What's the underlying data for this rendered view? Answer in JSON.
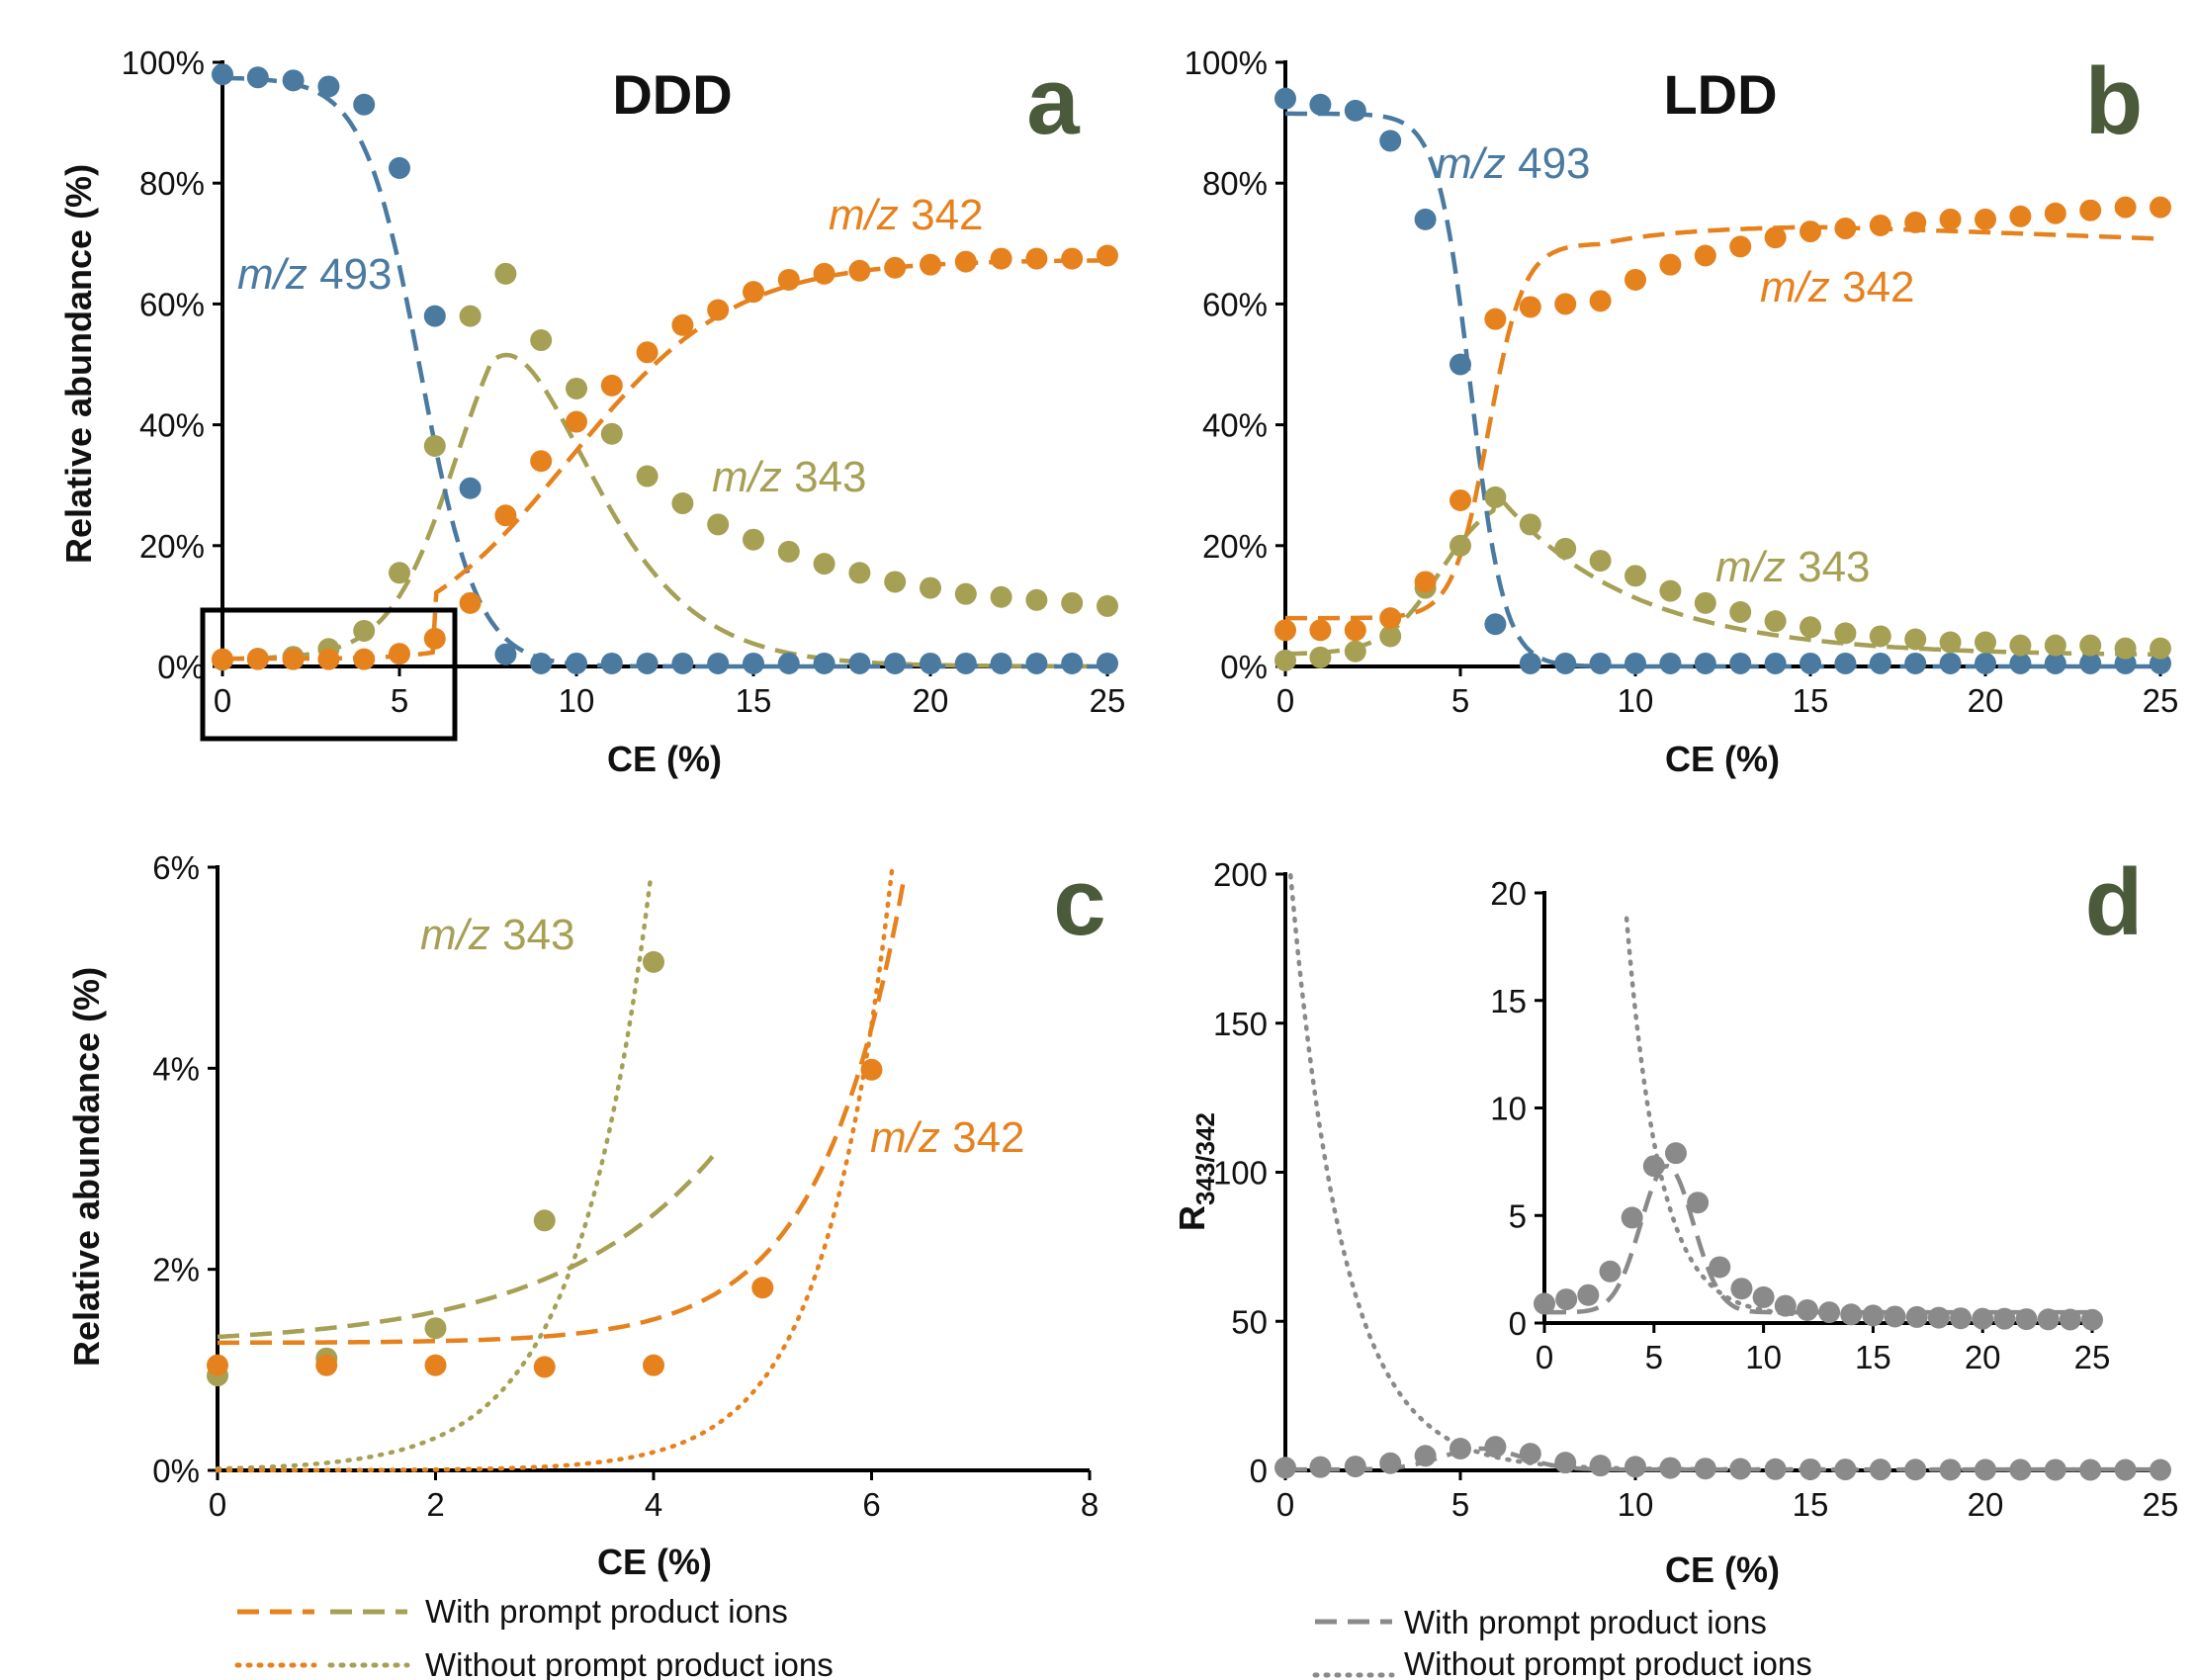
{
  "colors": {
    "blue": "#4a7aa0",
    "orange": "#e6821e",
    "olive": "#a6a055",
    "gray": "#8a8a8a",
    "panel_letter": "#4a5a3a",
    "axis": "#000000"
  },
  "legend_text": {
    "with_prompt": "With prompt product ions",
    "without_prompt": "Without prompt product ions"
  },
  "chart_data": [
    {
      "panel": "a",
      "type": "scatter",
      "title": "DDD",
      "xlabel": "CE (%)",
      "ylabel": "Relative abundance (%)",
      "xlim": [
        0,
        25
      ],
      "ylim": [
        0,
        100
      ],
      "xticks": [
        "0",
        "5",
        "10",
        "15",
        "20",
        "25"
      ],
      "yticks": [
        "0%",
        "20%",
        "40%",
        "60%",
        "80%",
        "100%"
      ],
      "annotations": [
        "m/z 493",
        "m/z 342",
        "m/z 343"
      ],
      "series": [
        {
          "name": "m/z 493",
          "x": [
            0,
            1,
            2,
            3,
            4,
            5,
            6,
            7,
            8,
            9,
            10,
            11,
            12,
            13,
            14,
            15,
            16,
            17,
            18,
            19,
            20,
            21,
            22,
            23,
            24,
            25
          ],
          "y": [
            98,
            97.5,
            97,
            96,
            93,
            82.5,
            58,
            29.5,
            2,
            0.5,
            0.5,
            0.5,
            0.5,
            0.5,
            0.5,
            0.5,
            0.5,
            0.5,
            0.5,
            0.5,
            0.5,
            0.5,
            0.5,
            0.5,
            0.5,
            0.5
          ]
        },
        {
          "name": "m/z 342",
          "x": [
            0,
            1,
            2,
            3,
            4,
            5,
            6,
            7,
            8,
            9,
            10,
            11,
            12,
            13,
            14,
            15,
            16,
            17,
            18,
            19,
            20,
            21,
            22,
            23,
            24,
            25
          ],
          "y": [
            1.2,
            1.2,
            1.2,
            1.2,
            1.2,
            2.1,
            4.6,
            10.5,
            25,
            34,
            40.5,
            46.5,
            52,
            56.5,
            59,
            62,
            64,
            65,
            65.5,
            66,
            66.5,
            67,
            67.5,
            67.5,
            67.5,
            68
          ]
        },
        {
          "name": "m/z 343",
          "x": [
            0,
            1,
            2,
            3,
            4,
            5,
            6,
            7,
            8,
            9,
            10,
            11,
            12,
            13,
            14,
            15,
            16,
            17,
            18,
            19,
            20,
            21,
            22,
            23,
            24,
            25
          ],
          "y": [
            1.1,
            1.3,
            1.6,
            2.9,
            5.9,
            15.5,
            36.5,
            58,
            65,
            54,
            46,
            38.5,
            31.5,
            27,
            23.5,
            21,
            19,
            17,
            15.5,
            14,
            13,
            12,
            11.5,
            11,
            10.5,
            10
          ]
        }
      ]
    },
    {
      "panel": "b",
      "type": "scatter",
      "title": "LDD",
      "xlabel": "CE (%)",
      "xlim": [
        0,
        25
      ],
      "ylim": [
        0,
        100
      ],
      "xticks": [
        "0",
        "5",
        "10",
        "15",
        "20",
        "25"
      ],
      "yticks": [
        "0%",
        "20%",
        "40%",
        "60%",
        "80%",
        "100%"
      ],
      "annotations": [
        "m/z 493",
        "m/z 342",
        "m/z 343"
      ],
      "series": [
        {
          "name": "m/z 493",
          "x": [
            0,
            1,
            2,
            3,
            4,
            5,
            6,
            7,
            8,
            9,
            10,
            11,
            12,
            13,
            14,
            15,
            16,
            17,
            18,
            19,
            20,
            21,
            22,
            23,
            24,
            25
          ],
          "y": [
            94,
            93,
            92,
            87,
            74,
            50,
            7,
            0.5,
            0.5,
            0.5,
            0.5,
            0.5,
            0.5,
            0.5,
            0.5,
            0.5,
            0.5,
            0.5,
            0.5,
            0.5,
            0.5,
            0.5,
            0.5,
            0.5,
            0.5,
            0.5
          ]
        },
        {
          "name": "m/z 342",
          "x": [
            0,
            1,
            2,
            3,
            4,
            5,
            6,
            7,
            8,
            9,
            10,
            11,
            12,
            13,
            14,
            15,
            16,
            17,
            18,
            19,
            20,
            21,
            22,
            23,
            24,
            25
          ],
          "y": [
            6,
            6,
            6,
            8,
            14,
            27.5,
            57.5,
            59.5,
            60,
            60.5,
            64,
            66.5,
            68,
            69.5,
            71,
            72,
            72.5,
            73,
            73.5,
            74,
            74,
            74.5,
            75,
            75.5,
            76,
            76
          ]
        },
        {
          "name": "m/z 343",
          "x": [
            0,
            1,
            2,
            3,
            4,
            5,
            6,
            7,
            8,
            9,
            10,
            11,
            12,
            13,
            14,
            15,
            16,
            17,
            18,
            19,
            20,
            21,
            22,
            23,
            24,
            25
          ],
          "y": [
            1,
            1.5,
            2.5,
            5,
            13,
            20,
            28,
            23.5,
            19.5,
            17.5,
            15,
            12.5,
            10.5,
            9,
            7.5,
            6.5,
            5.5,
            5,
            4.5,
            4,
            4,
            3.5,
            3.5,
            3.5,
            3,
            3
          ]
        }
      ]
    },
    {
      "panel": "c",
      "type": "scatter",
      "xlabel": "CE (%)",
      "ylabel": "Relative abundance (%)",
      "xlim": [
        0,
        8
      ],
      "ylim": [
        0,
        7
      ],
      "xticks": [
        "0",
        "2",
        "4",
        "6",
        "8"
      ],
      "yticks": [
        "0%",
        "2%",
        "4%",
        "6%"
      ],
      "annotations": [
        "m/z 343",
        "m/z 342"
      ],
      "series": [
        {
          "name": "m/z 343",
          "x": [
            0,
            1,
            2,
            3,
            4
          ],
          "y": [
            1.1,
            1.3,
            1.65,
            2.9,
            5.9
          ]
        },
        {
          "name": "m/z 342",
          "x": [
            0,
            1,
            2,
            3,
            4,
            5,
            6
          ],
          "y": [
            1.22,
            1.22,
            1.22,
            1.2,
            1.22,
            2.12,
            4.65
          ]
        }
      ]
    },
    {
      "panel": "d",
      "type": "scatter",
      "xlabel": "CE (%)",
      "ylabel": "R343/342",
      "xlim": [
        0,
        25
      ],
      "ylim": [
        0,
        200
      ],
      "xticks": [
        "0",
        "5",
        "10",
        "15",
        "20",
        "25"
      ],
      "yticks": [
        "0",
        "50",
        "100",
        "150",
        "200"
      ],
      "series": [
        {
          "x": [
            0,
            1,
            2,
            3,
            4,
            5,
            6,
            7,
            8,
            9,
            10,
            11,
            12,
            13,
            14,
            15,
            16,
            17,
            18,
            19,
            20,
            21,
            22,
            23,
            24,
            25
          ],
          "y": [
            0.9,
            1.1,
            1.3,
            2.4,
            4.9,
            7.3,
            7.9,
            5.6,
            2.6,
            1.6,
            1.2,
            0.8,
            0.6,
            0.5,
            0.4,
            0.35,
            0.3,
            0.28,
            0.25,
            0.22,
            0.2,
            0.2,
            0.18,
            0.17,
            0.16,
            0.15
          ]
        }
      ],
      "inset": {
        "xlim": [
          0,
          25
        ],
        "ylim": [
          0,
          20
        ],
        "xticks": [
          "0",
          "5",
          "10",
          "15",
          "20",
          "25"
        ],
        "yticks": [
          "0",
          "5",
          "10",
          "15",
          "20"
        ]
      }
    }
  ]
}
